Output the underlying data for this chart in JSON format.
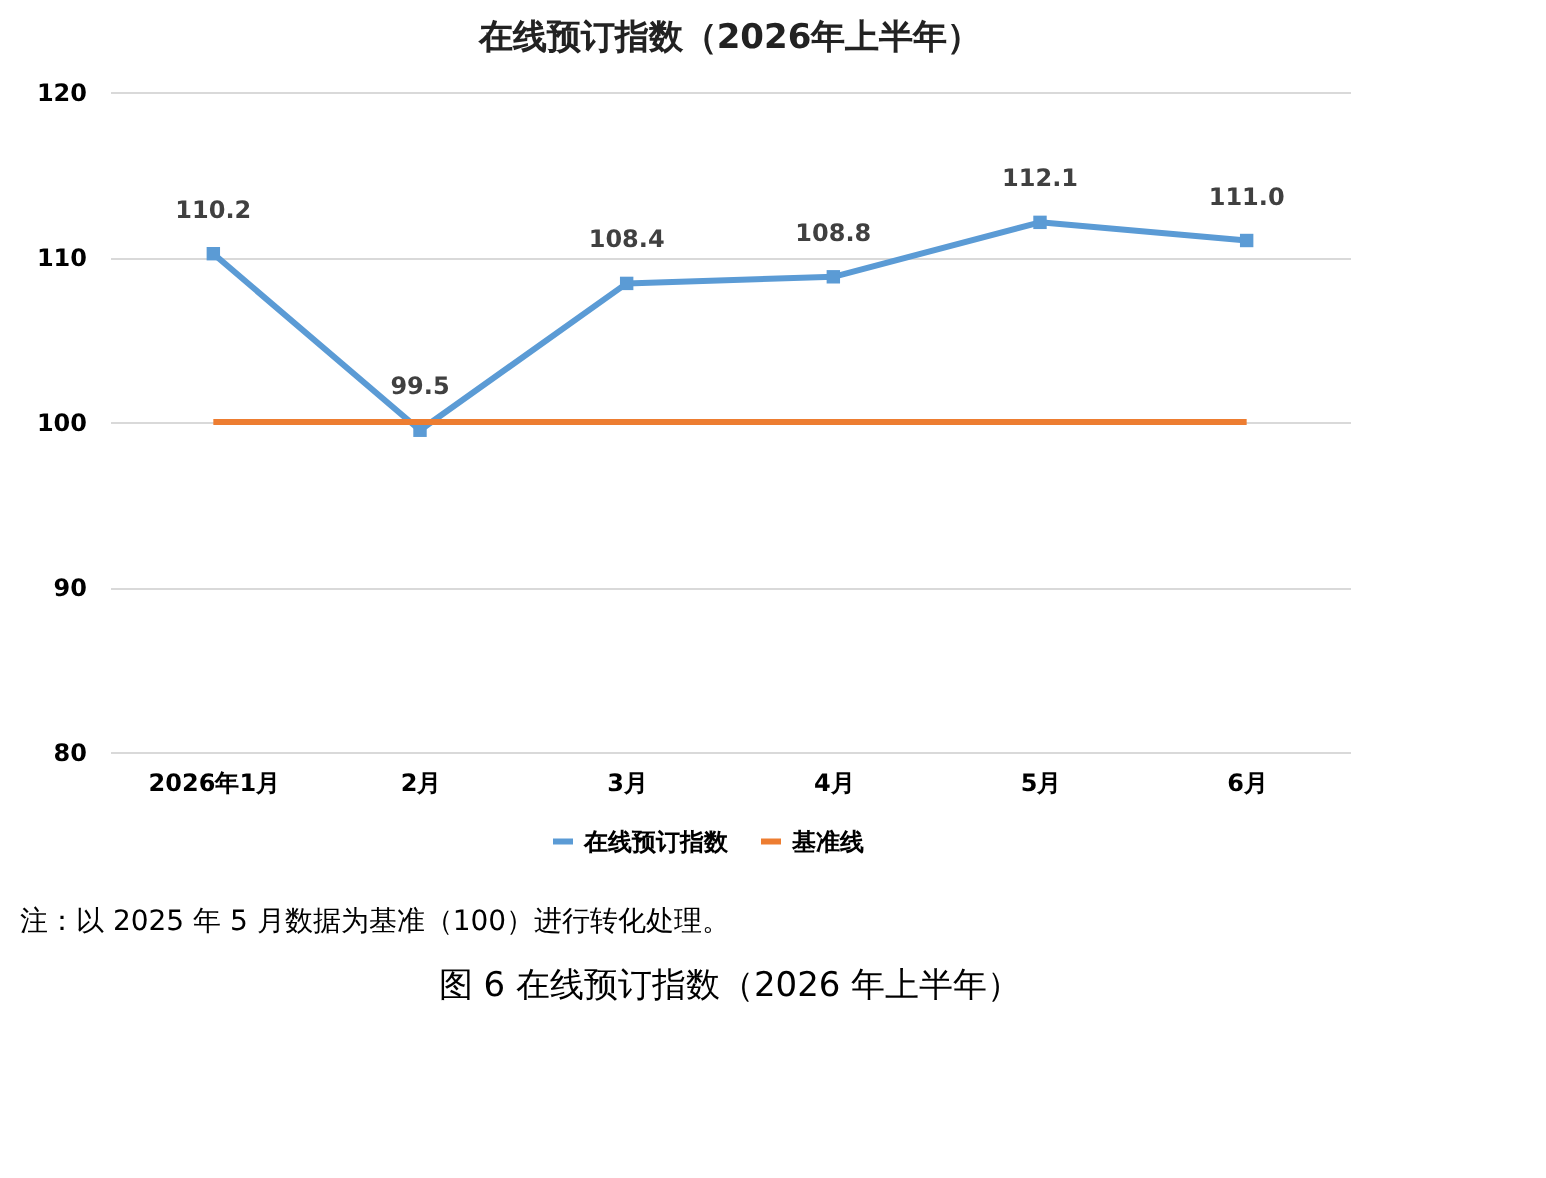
{
  "chart_data": {
    "type": "line",
    "title": "在线预订指数（2026年上半年）",
    "categories": [
      "2026年1月",
      "2月",
      "3月",
      "4月",
      "5月",
      "6月"
    ],
    "series": [
      {
        "name": "在线预订指数",
        "color": "#5b9bd5",
        "values": [
          110.2,
          99.5,
          108.4,
          108.8,
          112.1,
          111.0
        ],
        "marker": "square",
        "value_labels": [
          "110.2",
          "99.5",
          "108.4",
          "108.8",
          "112.1",
          "111.0"
        ]
      },
      {
        "name": "基准线",
        "color": "#ed7d31",
        "values": [
          100,
          100,
          100,
          100,
          100,
          100
        ],
        "marker": "none"
      }
    ],
    "ylim": [
      80,
      120
    ],
    "yticks": [
      80,
      90,
      100,
      110,
      120
    ],
    "grid": "y",
    "legend": "bottom",
    "line_style": "solid",
    "annotations": [
      "注：以 2025 年 5 月数据为基准（100）进行转化处理。",
      "图 6 在线预订指数（2026 年上半年）"
    ]
  }
}
